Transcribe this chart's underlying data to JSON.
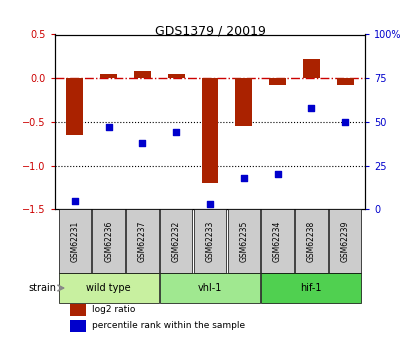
{
  "title": "GDS1379 / 20019",
  "samples": [
    "GSM62231",
    "GSM62236",
    "GSM62237",
    "GSM62232",
    "GSM62233",
    "GSM62235",
    "GSM62234",
    "GSM62238",
    "GSM62239"
  ],
  "log2_ratio": [
    -0.65,
    0.05,
    0.08,
    0.05,
    -1.2,
    -0.55,
    -0.08,
    0.22,
    -0.08
  ],
  "percentile_rank": [
    5,
    47,
    38,
    44,
    3,
    18,
    20,
    58,
    50
  ],
  "groups": [
    {
      "label": "wild type",
      "start": 0,
      "end": 3,
      "color": "#c8f0a0"
    },
    {
      "label": "vhl-1",
      "start": 3,
      "end": 6,
      "color": "#a0e890"
    },
    {
      "label": "hif-1",
      "start": 6,
      "end": 9,
      "color": "#50d050"
    }
  ],
  "ylim_left": [
    -1.5,
    0.5
  ],
  "ylim_right": [
    0,
    100
  ],
  "left_ticks": [
    0.5,
    0.0,
    -0.5,
    -1.0,
    -1.5
  ],
  "right_ticks": [
    100,
    75,
    50,
    25,
    0
  ],
  "bar_color": "#aa2200",
  "dot_color": "#0000cc",
  "ref_line_color": "#cc0000",
  "grid_line_color": "#000000",
  "sample_box_color": "#cccccc",
  "strain_label": "strain",
  "legend_bar": "log2 ratio",
  "legend_dot": "percentile rank within the sample"
}
